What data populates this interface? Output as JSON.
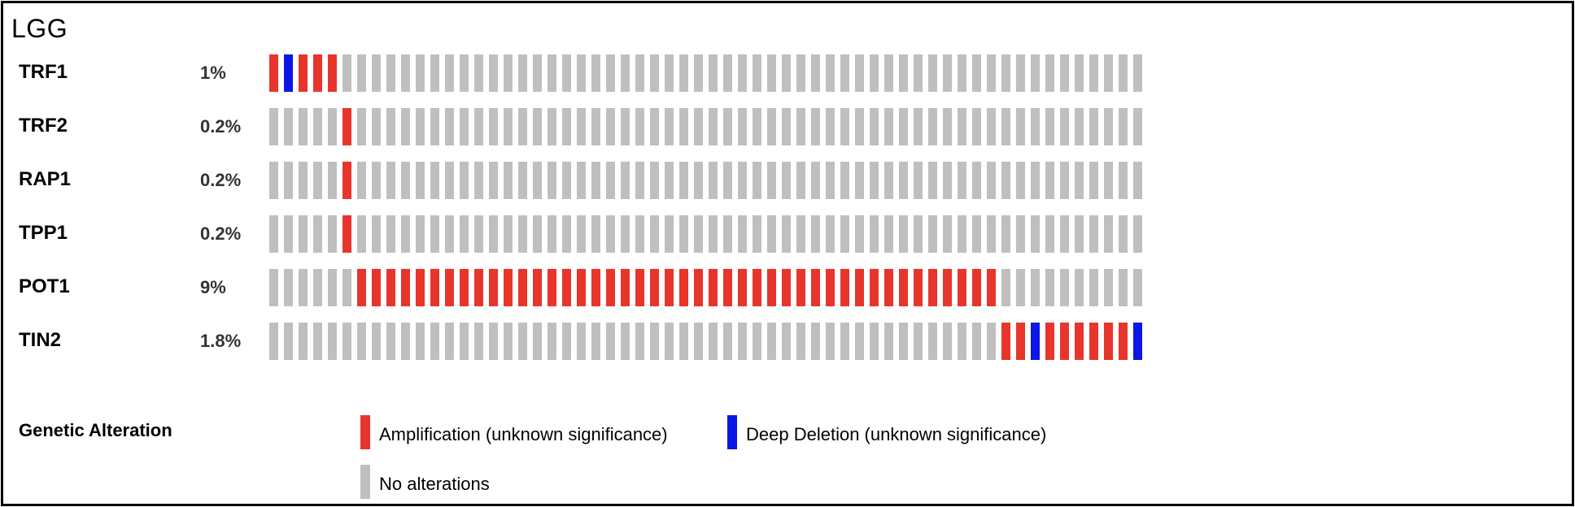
{
  "chart_data": {
    "type": "oncoprint",
    "title": "LGG",
    "colors": {
      "amplification": "#e8352b",
      "deep_deletion": "#0c16e6",
      "no_alteration": "#bfbfbf"
    },
    "rows": [
      {
        "gene": "TRF1",
        "percent": "1%",
        "cells": [
          "A",
          "D",
          "A",
          "A",
          "A",
          "N",
          "N",
          "N",
          "N",
          "N",
          "N",
          "N",
          "N",
          "N",
          "N",
          "N",
          "N",
          "N",
          "N",
          "N",
          "N",
          "N",
          "N",
          "N",
          "N",
          "N",
          "N",
          "N",
          "N",
          "N",
          "N",
          "N",
          "N",
          "N",
          "N",
          "N",
          "N",
          "N",
          "N",
          "N",
          "N",
          "N",
          "N",
          "N",
          "N",
          "N",
          "N",
          "N",
          "N",
          "N",
          "N",
          "N",
          "N",
          "N",
          "N",
          "N",
          "N",
          "N",
          "N",
          "N"
        ]
      },
      {
        "gene": "TRF2",
        "percent": "0.2%",
        "cells": [
          "N",
          "N",
          "N",
          "N",
          "N",
          "A",
          "N",
          "N",
          "N",
          "N",
          "N",
          "N",
          "N",
          "N",
          "N",
          "N",
          "N",
          "N",
          "N",
          "N",
          "N",
          "N",
          "N",
          "N",
          "N",
          "N",
          "N",
          "N",
          "N",
          "N",
          "N",
          "N",
          "N",
          "N",
          "N",
          "N",
          "N",
          "N",
          "N",
          "N",
          "N",
          "N",
          "N",
          "N",
          "N",
          "N",
          "N",
          "N",
          "N",
          "N",
          "N",
          "N",
          "N",
          "N",
          "N",
          "N",
          "N",
          "N",
          "N",
          "N"
        ]
      },
      {
        "gene": "RAP1",
        "percent": "0.2%",
        "cells": [
          "N",
          "N",
          "N",
          "N",
          "N",
          "A",
          "N",
          "N",
          "N",
          "N",
          "N",
          "N",
          "N",
          "N",
          "N",
          "N",
          "N",
          "N",
          "N",
          "N",
          "N",
          "N",
          "N",
          "N",
          "N",
          "N",
          "N",
          "N",
          "N",
          "N",
          "N",
          "N",
          "N",
          "N",
          "N",
          "N",
          "N",
          "N",
          "N",
          "N",
          "N",
          "N",
          "N",
          "N",
          "N",
          "N",
          "N",
          "N",
          "N",
          "N",
          "N",
          "N",
          "N",
          "N",
          "N",
          "N",
          "N",
          "N",
          "N",
          "N"
        ]
      },
      {
        "gene": "TPP1",
        "percent": "0.2%",
        "cells": [
          "N",
          "N",
          "N",
          "N",
          "N",
          "A",
          "N",
          "N",
          "N",
          "N",
          "N",
          "N",
          "N",
          "N",
          "N",
          "N",
          "N",
          "N",
          "N",
          "N",
          "N",
          "N",
          "N",
          "N",
          "N",
          "N",
          "N",
          "N",
          "N",
          "N",
          "N",
          "N",
          "N",
          "N",
          "N",
          "N",
          "N",
          "N",
          "N",
          "N",
          "N",
          "N",
          "N",
          "N",
          "N",
          "N",
          "N",
          "N",
          "N",
          "N",
          "N",
          "N",
          "N",
          "N",
          "N",
          "N",
          "N",
          "N",
          "N",
          "N"
        ]
      },
      {
        "gene": "POT1",
        "percent": "9%",
        "cells": [
          "N",
          "N",
          "N",
          "N",
          "N",
          "N",
          "A",
          "A",
          "A",
          "A",
          "A",
          "A",
          "A",
          "A",
          "A",
          "A",
          "A",
          "A",
          "A",
          "A",
          "A",
          "A",
          "A",
          "A",
          "A",
          "A",
          "A",
          "A",
          "A",
          "A",
          "A",
          "A",
          "A",
          "A",
          "A",
          "A",
          "A",
          "A",
          "A",
          "A",
          "A",
          "A",
          "A",
          "A",
          "A",
          "A",
          "A",
          "A",
          "A",
          "A",
          "N",
          "N",
          "N",
          "N",
          "N",
          "N",
          "N",
          "N",
          "N",
          "N"
        ]
      },
      {
        "gene": "TIN2",
        "percent": "1.8%",
        "cells": [
          "N",
          "N",
          "N",
          "N",
          "N",
          "N",
          "N",
          "N",
          "N",
          "N",
          "N",
          "N",
          "N",
          "N",
          "N",
          "N",
          "N",
          "N",
          "N",
          "N",
          "N",
          "N",
          "N",
          "N",
          "N",
          "N",
          "N",
          "N",
          "N",
          "N",
          "N",
          "N",
          "N",
          "N",
          "N",
          "N",
          "N",
          "N",
          "N",
          "N",
          "N",
          "N",
          "N",
          "N",
          "N",
          "N",
          "N",
          "N",
          "N",
          "N",
          "A",
          "A",
          "D",
          "A",
          "A",
          "A",
          "A",
          "A",
          "A",
          "D"
        ]
      }
    ],
    "legend": {
      "title": "Genetic Alteration",
      "items": [
        {
          "key": "A",
          "label": "Amplification (unknown significance)"
        },
        {
          "key": "D",
          "label": "Deep Deletion (unknown significance)"
        },
        {
          "key": "N",
          "label": "No alterations"
        }
      ]
    }
  }
}
